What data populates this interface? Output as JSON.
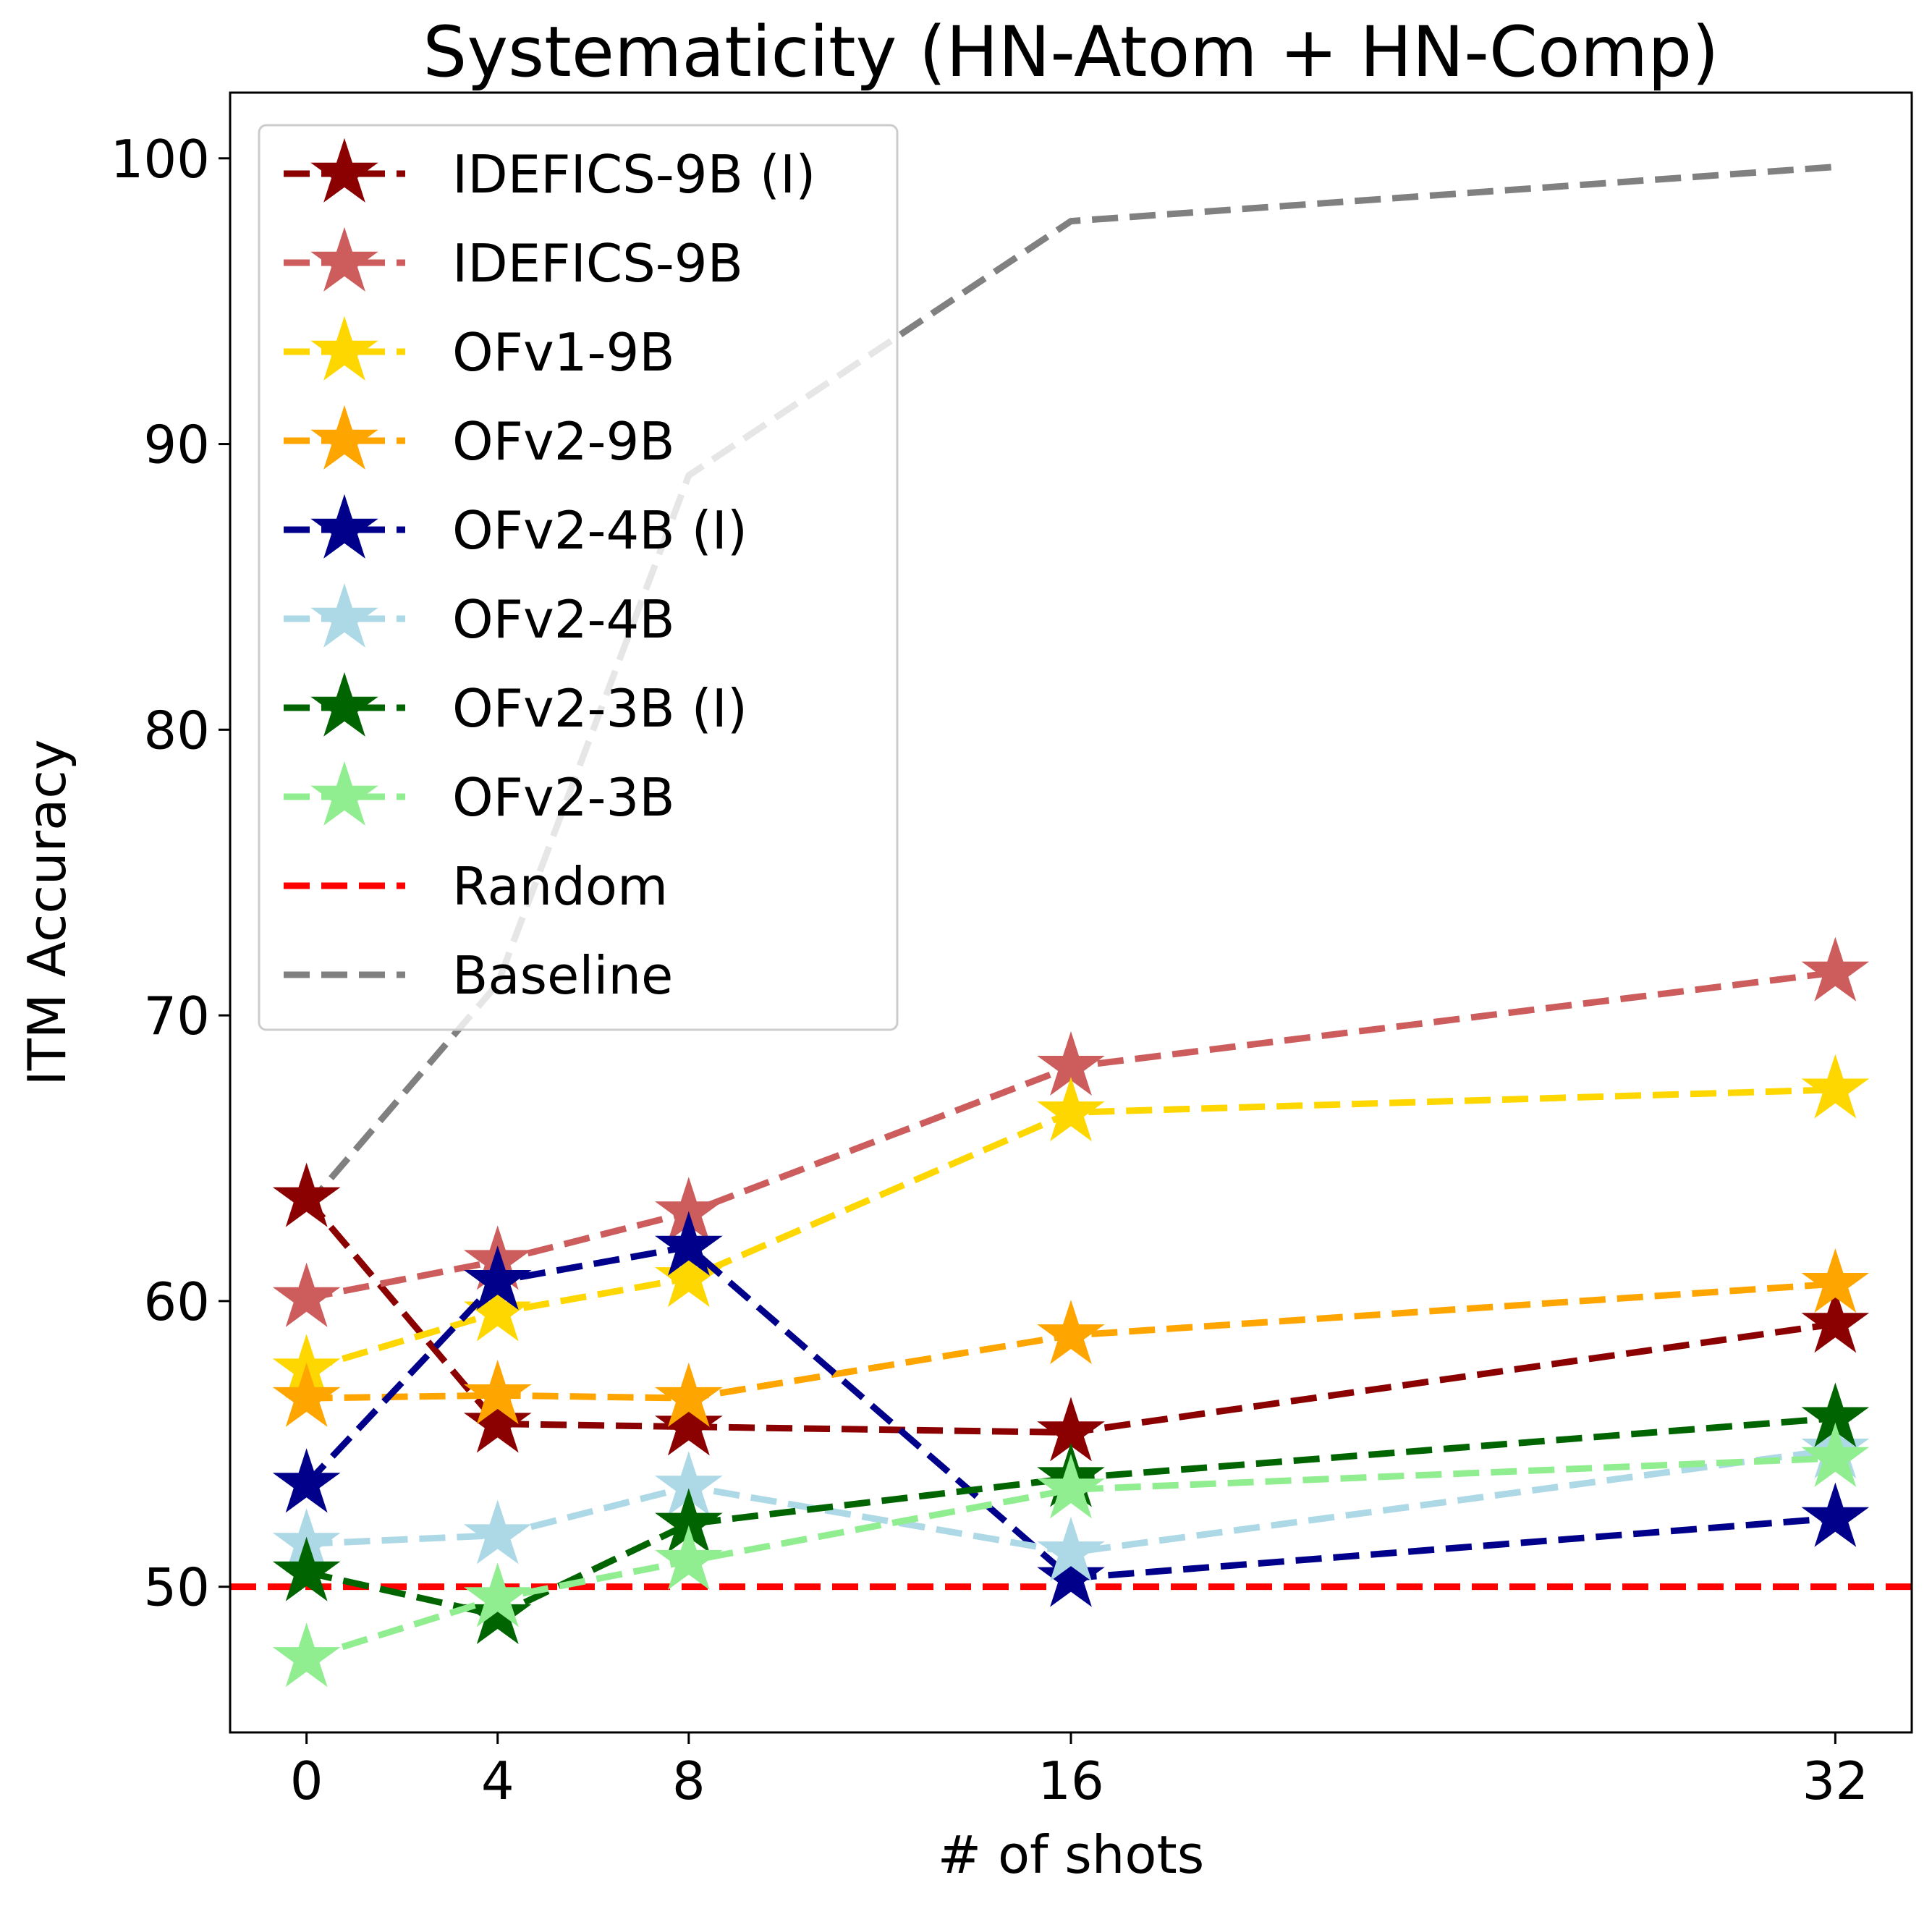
{
  "chart_data": {
    "type": "line",
    "title": "Systematicity (HN-Atom + HN-Comp)",
    "xlabel": "# of shots",
    "ylabel": "ITM Accuracy",
    "x": [
      0,
      4,
      8,
      16,
      32
    ],
    "x_ticks": [
      "0",
      "4",
      "8",
      "16",
      "32"
    ],
    "y_ticks": [
      "50",
      "60",
      "70",
      "80",
      "90",
      "100"
    ],
    "xlim": [
      -1.6,
      33.6
    ],
    "ylim": [
      44.9,
      102.3
    ],
    "grid": false,
    "legend_position": "upper-left",
    "series": [
      {
        "name": "IDEFICS-9B (I)",
        "color": "#8b0000",
        "marker": "star-icon",
        "values": [
          63.6,
          55.7,
          55.6,
          55.4,
          59.2
        ]
      },
      {
        "name": "IDEFICS-9B",
        "color": "#cd5c5c",
        "marker": "star-icon",
        "values": [
          60.1,
          61.4,
          63.1,
          68.2,
          71.5
        ]
      },
      {
        "name": "OFv1-9B",
        "color": "#ffd700",
        "marker": "star-icon",
        "values": [
          57.6,
          59.6,
          60.8,
          66.6,
          67.4
        ]
      },
      {
        "name": "OFv2-9B",
        "color": "#ffa500",
        "marker": "star-icon",
        "values": [
          56.6,
          56.7,
          56.6,
          58.8,
          60.6
        ]
      },
      {
        "name": "OFv2-4B (I)",
        "color": "#00008b",
        "marker": "star-icon",
        "values": [
          53.6,
          60.7,
          61.9,
          50.3,
          52.4
        ]
      },
      {
        "name": "OFv2-4B",
        "color": "#add8e6",
        "marker": "star-icon",
        "values": [
          51.5,
          51.8,
          53.5,
          51.2,
          54.8
        ]
      },
      {
        "name": "OFv2-3B (I)",
        "color": "#006400",
        "marker": "star-icon",
        "values": [
          50.5,
          49.0,
          52.2,
          53.8,
          55.9
        ]
      },
      {
        "name": "OFv2-3B",
        "color": "#90ee90",
        "marker": "star-icon",
        "values": [
          47.5,
          49.6,
          50.9,
          53.4,
          54.5
        ]
      },
      {
        "name": "Random",
        "color": "#ff0000",
        "marker": "none",
        "values": [
          50,
          50,
          50,
          50,
          50
        ]
      },
      {
        "name": "Baseline",
        "color": "#808080",
        "marker": "none",
        "values": [
          63.3,
          71.1,
          88.9,
          97.8,
          99.7
        ]
      }
    ]
  }
}
